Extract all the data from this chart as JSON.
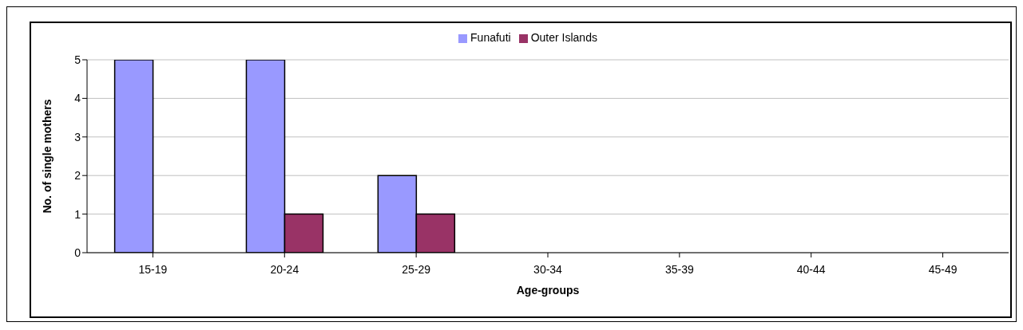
{
  "chart_data": {
    "type": "bar",
    "xlabel": "Age-groups",
    "ylabel": "No. of single mothers",
    "categories": [
      "15-19",
      "20-24",
      "25-29",
      "30-34",
      "35-39",
      "40-44",
      "45-49"
    ],
    "series": [
      {
        "name": "Funafuti",
        "color": "#9999ff",
        "values": [
          5,
          5,
          2,
          0,
          0,
          0,
          0
        ]
      },
      {
        "name": "Outer Islands",
        "color": "#993366",
        "values": [
          0,
          1,
          1,
          0,
          0,
          0,
          0
        ]
      }
    ],
    "ylim": [
      0,
      5
    ],
    "yticks": [
      0,
      1,
      2,
      3,
      4,
      5
    ],
    "grid": "y",
    "legend": "top"
  }
}
